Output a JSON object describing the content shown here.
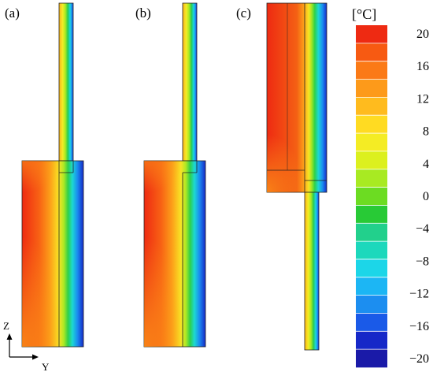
{
  "panels": [
    {
      "label": "(a)"
    },
    {
      "label": "(b)"
    },
    {
      "label": "(c)"
    }
  ],
  "colorbar": {
    "unit": "[°C]",
    "ticks": [
      "20",
      "16",
      "12",
      "8",
      "4",
      "0",
      "−4",
      "−8",
      "−12",
      "−16",
      "−20"
    ],
    "min": -20,
    "max": 20,
    "colors": [
      "#ee2a12",
      "#f75a12",
      "#fb7a16",
      "#fd9a1a",
      "#ffbb1e",
      "#ffdb22",
      "#f4ec24",
      "#dcf01e",
      "#a8ea22",
      "#6cdc22",
      "#28ca36",
      "#22d08c",
      "#1cd8bc",
      "#1cd6e8",
      "#1cb6f4",
      "#1c8ef0",
      "#1a5ae8",
      "#1628c8",
      "#1a1aa8"
    ]
  },
  "axes": {
    "vertical": "Z",
    "horizontal": "Y"
  }
}
